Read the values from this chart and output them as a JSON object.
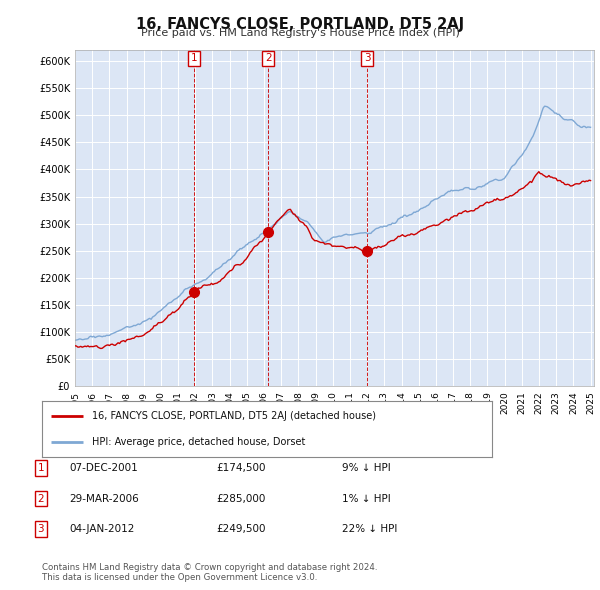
{
  "title": "16, FANCYS CLOSE, PORTLAND, DT5 2AJ",
  "subtitle": "Price paid vs. HM Land Registry's House Price Index (HPI)",
  "background_color": "#ffffff",
  "plot_bg_color": "#dce6f5",
  "grid_color": "#ffffff",
  "hpi_color": "#7fa8d4",
  "sold_color": "#cc0000",
  "sale_dates": [
    2001.92,
    2006.24,
    2012.01
  ],
  "sale_prices": [
    174500,
    285000,
    249500
  ],
  "sale_labels": [
    "1",
    "2",
    "3"
  ],
  "legend_house": "16, FANCYS CLOSE, PORTLAND, DT5 2AJ (detached house)",
  "legend_hpi": "HPI: Average price, detached house, Dorset",
  "table_rows": [
    [
      "1",
      "07-DEC-2001",
      "£174,500",
      "9% ↓ HPI"
    ],
    [
      "2",
      "29-MAR-2006",
      "£285,000",
      "1% ↓ HPI"
    ],
    [
      "3",
      "04-JAN-2012",
      "£249,500",
      "22% ↓ HPI"
    ]
  ],
  "footnote1": "Contains HM Land Registry data © Crown copyright and database right 2024.",
  "footnote2": "This data is licensed under the Open Government Licence v3.0.",
  "ylim": [
    0,
    620000
  ],
  "yticks": [
    0,
    50000,
    100000,
    150000,
    200000,
    250000,
    300000,
    350000,
    400000,
    450000,
    500000,
    550000,
    600000
  ],
  "ytick_labels": [
    "£0",
    "£50K",
    "£100K",
    "£150K",
    "£200K",
    "£250K",
    "£300K",
    "£350K",
    "£400K",
    "£450K",
    "£500K",
    "£550K",
    "£600K"
  ]
}
